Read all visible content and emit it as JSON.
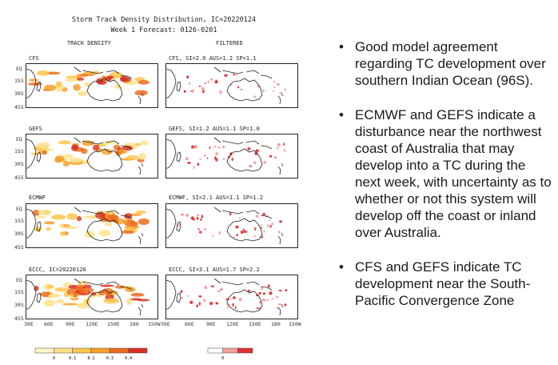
{
  "figure": {
    "title_line1": "Storm Track Density Distribution, IC=20220124",
    "title_line2": "Week 1 Forecast: 0126-0201",
    "left_header": "TRACK DENSITY",
    "right_header": "FILTERED",
    "lat_labels": [
      "EQ",
      "15S",
      "30S",
      "45S"
    ],
    "lon_labels": [
      "30E",
      "60E",
      "90E",
      "120E",
      "150E",
      "180",
      "150W"
    ],
    "rows": [
      {
        "left": "CFS",
        "right": "CFS, SI=2.0  AUS=1.2  SP=1.1"
      },
      {
        "left": "GEFS",
        "right": "GEFS, SI=1.2  AUS=1.1  SP=1.0"
      },
      {
        "left": "ECMWF",
        "right": "ECMWF, SI=2.1  AUS=1.1  SP=1.2"
      },
      {
        "left": "ECCC, IC=20220120",
        "right": "ECCC, SI=3.1  AUS=1.7  SP=2.2"
      }
    ],
    "density_colorbar": {
      "colors": [
        "#fff6c8",
        "#ffe28a",
        "#ffc64a",
        "#f7a02c",
        "#ef6b1e",
        "#d7301f"
      ],
      "tick_labels": [
        "0",
        "0.1",
        "0.2",
        "0.3",
        "0.4"
      ]
    },
    "filtered_colorbar": {
      "colors": [
        "#ffffff",
        "#f4a0a0",
        "#e03030"
      ],
      "tick_labels": [
        "0",
        ""
      ]
    }
  },
  "bullets": [
    "Good model agreement regarding TC development over southern Indian Ocean (96S).",
    "ECMWF and GEFS indicate a disturbance near the northwest coast of Australia that may develop into a TC during the next week, with uncertainty as to whether or not this system will develop off the coast or inland over Australia.",
    "CFS and GEFS indicate TC development near the South-Pacific Convergence Zone"
  ],
  "bullet_glyph": "•"
}
